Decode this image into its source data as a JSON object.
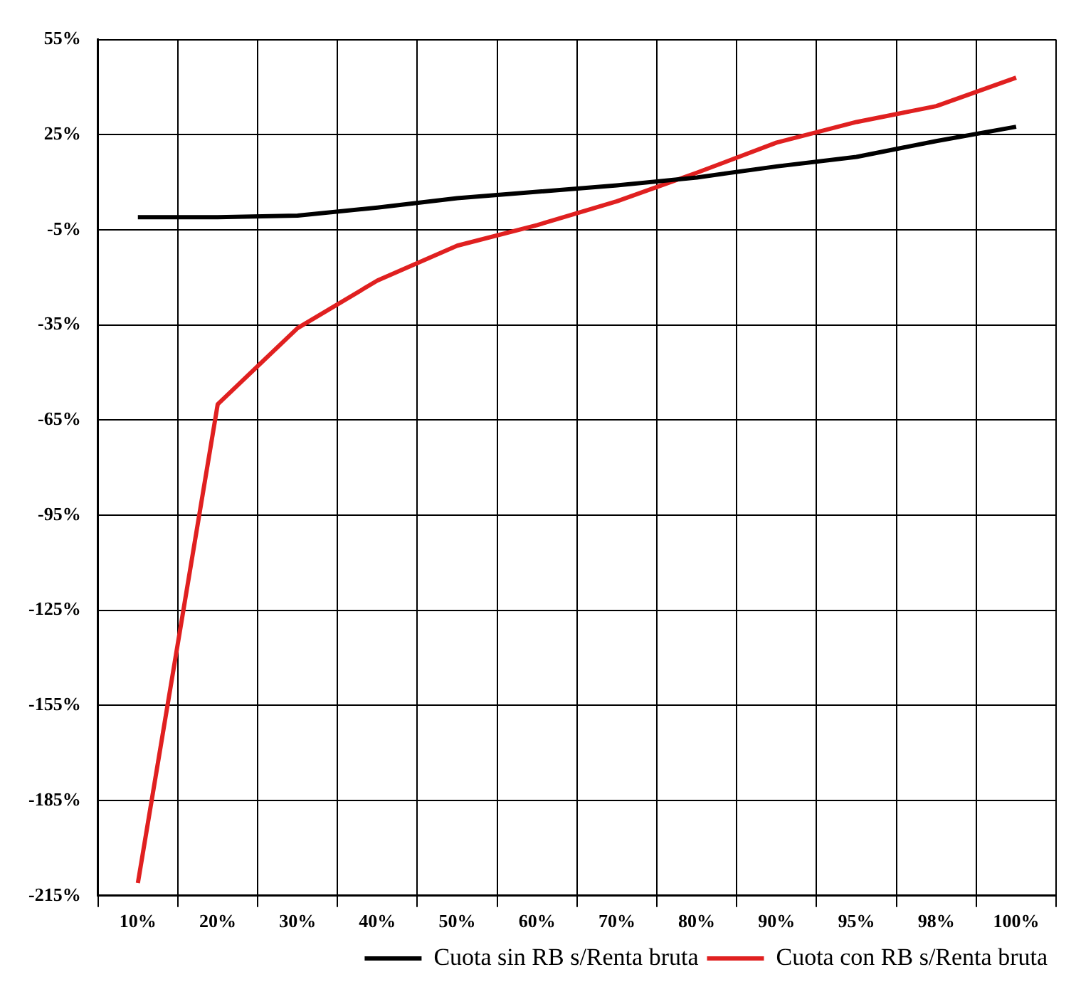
{
  "chart_data": {
    "type": "line",
    "categories": [
      "10%",
      "20%",
      "30%",
      "40%",
      "50%",
      "60%",
      "70%",
      "80%",
      "90%",
      "95%",
      "98%",
      "100%"
    ],
    "series": [
      {
        "name": "Cuota sin RB s/Renta bruta",
        "color": "#000000",
        "values": [
          -1,
          -1,
          -0.5,
          2,
          5,
          7,
          9,
          11.5,
          15,
          18,
          23,
          27.5
        ]
      },
      {
        "name": "Cuota con RB s/Renta bruta",
        "color": "#e02020",
        "values": [
          -211,
          -60,
          -36,
          -21,
          -10,
          -3.5,
          4,
          13,
          22.5,
          29,
          34,
          43
        ]
      }
    ],
    "ylim": [
      -215,
      55
    ],
    "yticks": [
      {
        "value": -215,
        "label": "-215%"
      },
      {
        "value": -185,
        "label": "-185%"
      },
      {
        "value": -155,
        "label": "-155%"
      },
      {
        "value": -125,
        "label": "-125%"
      },
      {
        "value": -95,
        "label": "-95%"
      },
      {
        "value": -65,
        "label": "-65%"
      },
      {
        "value": -35,
        "label": "-35%"
      },
      {
        "value": -5,
        "label": "-5%"
      },
      {
        "value": 25,
        "label": "25%"
      },
      {
        "value": 55,
        "label": "55%"
      }
    ],
    "grid": true,
    "legend": "bottom right",
    "marker": "none",
    "line_style": "solid"
  }
}
